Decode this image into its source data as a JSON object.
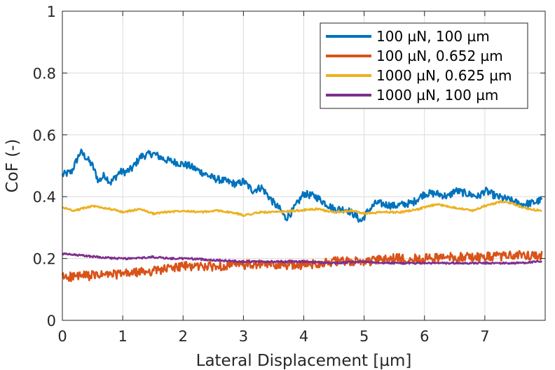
{
  "chart_data": {
    "type": "line",
    "title": "",
    "xlabel": "Lateral Displacement [µm]",
    "ylabel": "CoF (-)",
    "xlim": [
      0,
      8
    ],
    "ylim": [
      0,
      1
    ],
    "xticks": [
      "0",
      "1",
      "2",
      "3",
      "4",
      "5",
      "6",
      "7"
    ],
    "yticks": [
      "0",
      "0.2",
      "0.4",
      "0.6",
      "0.8",
      "1"
    ],
    "grid": true,
    "legend_position": "top-right",
    "series": [
      {
        "name": "100 µN, 100 µm",
        "color": "#0072BD",
        "noise": 0.012,
        "points": [
          [
            0,
            0.47
          ],
          [
            0.15,
            0.48
          ],
          [
            0.3,
            0.545
          ],
          [
            0.4,
            0.525
          ],
          [
            0.5,
            0.5
          ],
          [
            0.6,
            0.45
          ],
          [
            0.7,
            0.47
          ],
          [
            0.8,
            0.445
          ],
          [
            0.95,
            0.48
          ],
          [
            1.05,
            0.48
          ],
          [
            1.15,
            0.49
          ],
          [
            1.3,
            0.53
          ],
          [
            1.5,
            0.54
          ],
          [
            1.7,
            0.52
          ],
          [
            1.9,
            0.51
          ],
          [
            2.1,
            0.5
          ],
          [
            2.3,
            0.48
          ],
          [
            2.5,
            0.46
          ],
          [
            2.7,
            0.45
          ],
          [
            2.9,
            0.44
          ],
          [
            3.0,
            0.45
          ],
          [
            3.15,
            0.42
          ],
          [
            3.3,
            0.43
          ],
          [
            3.5,
            0.38
          ],
          [
            3.6,
            0.36
          ],
          [
            3.7,
            0.33
          ],
          [
            3.8,
            0.35
          ],
          [
            3.9,
            0.38
          ],
          [
            4.0,
            0.41
          ],
          [
            4.2,
            0.4
          ],
          [
            4.35,
            0.38
          ],
          [
            4.5,
            0.36
          ],
          [
            4.7,
            0.36
          ],
          [
            4.85,
            0.34
          ],
          [
            4.95,
            0.32
          ],
          [
            5.05,
            0.35
          ],
          [
            5.2,
            0.38
          ],
          [
            5.5,
            0.37
          ],
          [
            5.8,
            0.38
          ],
          [
            6.0,
            0.41
          ],
          [
            6.2,
            0.41
          ],
          [
            6.4,
            0.4
          ],
          [
            6.5,
            0.42
          ],
          [
            6.7,
            0.41
          ],
          [
            6.9,
            0.4
          ],
          [
            7.0,
            0.42
          ],
          [
            7.2,
            0.4
          ],
          [
            7.4,
            0.39
          ],
          [
            7.6,
            0.375
          ],
          [
            7.8,
            0.38
          ],
          [
            7.95,
            0.39
          ]
        ]
      },
      {
        "name": "100 µN, 0.652 µm",
        "color": "#D95319",
        "noise": 0.015,
        "points": [
          [
            0,
            0.14
          ],
          [
            0.5,
            0.145
          ],
          [
            1.0,
            0.15
          ],
          [
            1.5,
            0.16
          ],
          [
            2.0,
            0.175
          ],
          [
            2.5,
            0.175
          ],
          [
            3.0,
            0.18
          ],
          [
            3.5,
            0.18
          ],
          [
            4.0,
            0.18
          ],
          [
            4.5,
            0.19
          ],
          [
            5.0,
            0.19
          ],
          [
            5.5,
            0.2
          ],
          [
            6.0,
            0.2
          ],
          [
            6.5,
            0.205
          ],
          [
            7.0,
            0.205
          ],
          [
            7.5,
            0.21
          ],
          [
            7.95,
            0.21
          ]
        ]
      },
      {
        "name": "1000 µN, 0.625 µm",
        "color": "#EDB120",
        "noise": 0.003,
        "points": [
          [
            0,
            0.365
          ],
          [
            0.2,
            0.355
          ],
          [
            0.5,
            0.37
          ],
          [
            0.8,
            0.36
          ],
          [
            1.0,
            0.35
          ],
          [
            1.3,
            0.36
          ],
          [
            1.5,
            0.345
          ],
          [
            1.7,
            0.35
          ],
          [
            2.0,
            0.355
          ],
          [
            2.3,
            0.35
          ],
          [
            2.6,
            0.355
          ],
          [
            2.9,
            0.345
          ],
          [
            3.0,
            0.34
          ],
          [
            3.3,
            0.35
          ],
          [
            3.6,
            0.35
          ],
          [
            3.9,
            0.355
          ],
          [
            4.2,
            0.36
          ],
          [
            4.5,
            0.35
          ],
          [
            4.8,
            0.355
          ],
          [
            5.0,
            0.345
          ],
          [
            5.3,
            0.35
          ],
          [
            5.6,
            0.35
          ],
          [
            5.9,
            0.36
          ],
          [
            6.2,
            0.375
          ],
          [
            6.5,
            0.365
          ],
          [
            6.8,
            0.355
          ],
          [
            7.0,
            0.37
          ],
          [
            7.3,
            0.385
          ],
          [
            7.5,
            0.375
          ],
          [
            7.7,
            0.36
          ],
          [
            7.95,
            0.355
          ]
        ]
      },
      {
        "name": "1000 µN, 100 µm",
        "color": "#7E2F8E",
        "noise": 0.003,
        "points": [
          [
            0,
            0.215
          ],
          [
            0.3,
            0.21
          ],
          [
            0.6,
            0.205
          ],
          [
            0.9,
            0.2
          ],
          [
            1.2,
            0.2
          ],
          [
            1.5,
            0.205
          ],
          [
            1.8,
            0.2
          ],
          [
            2.1,
            0.2
          ],
          [
            2.5,
            0.195
          ],
          [
            3.0,
            0.19
          ],
          [
            3.5,
            0.19
          ],
          [
            4.0,
            0.19
          ],
          [
            4.5,
            0.185
          ],
          [
            5.0,
            0.19
          ],
          [
            5.5,
            0.185
          ],
          [
            6.0,
            0.185
          ],
          [
            6.5,
            0.185
          ],
          [
            7.0,
            0.185
          ],
          [
            7.5,
            0.185
          ],
          [
            7.95,
            0.19
          ]
        ]
      }
    ]
  }
}
